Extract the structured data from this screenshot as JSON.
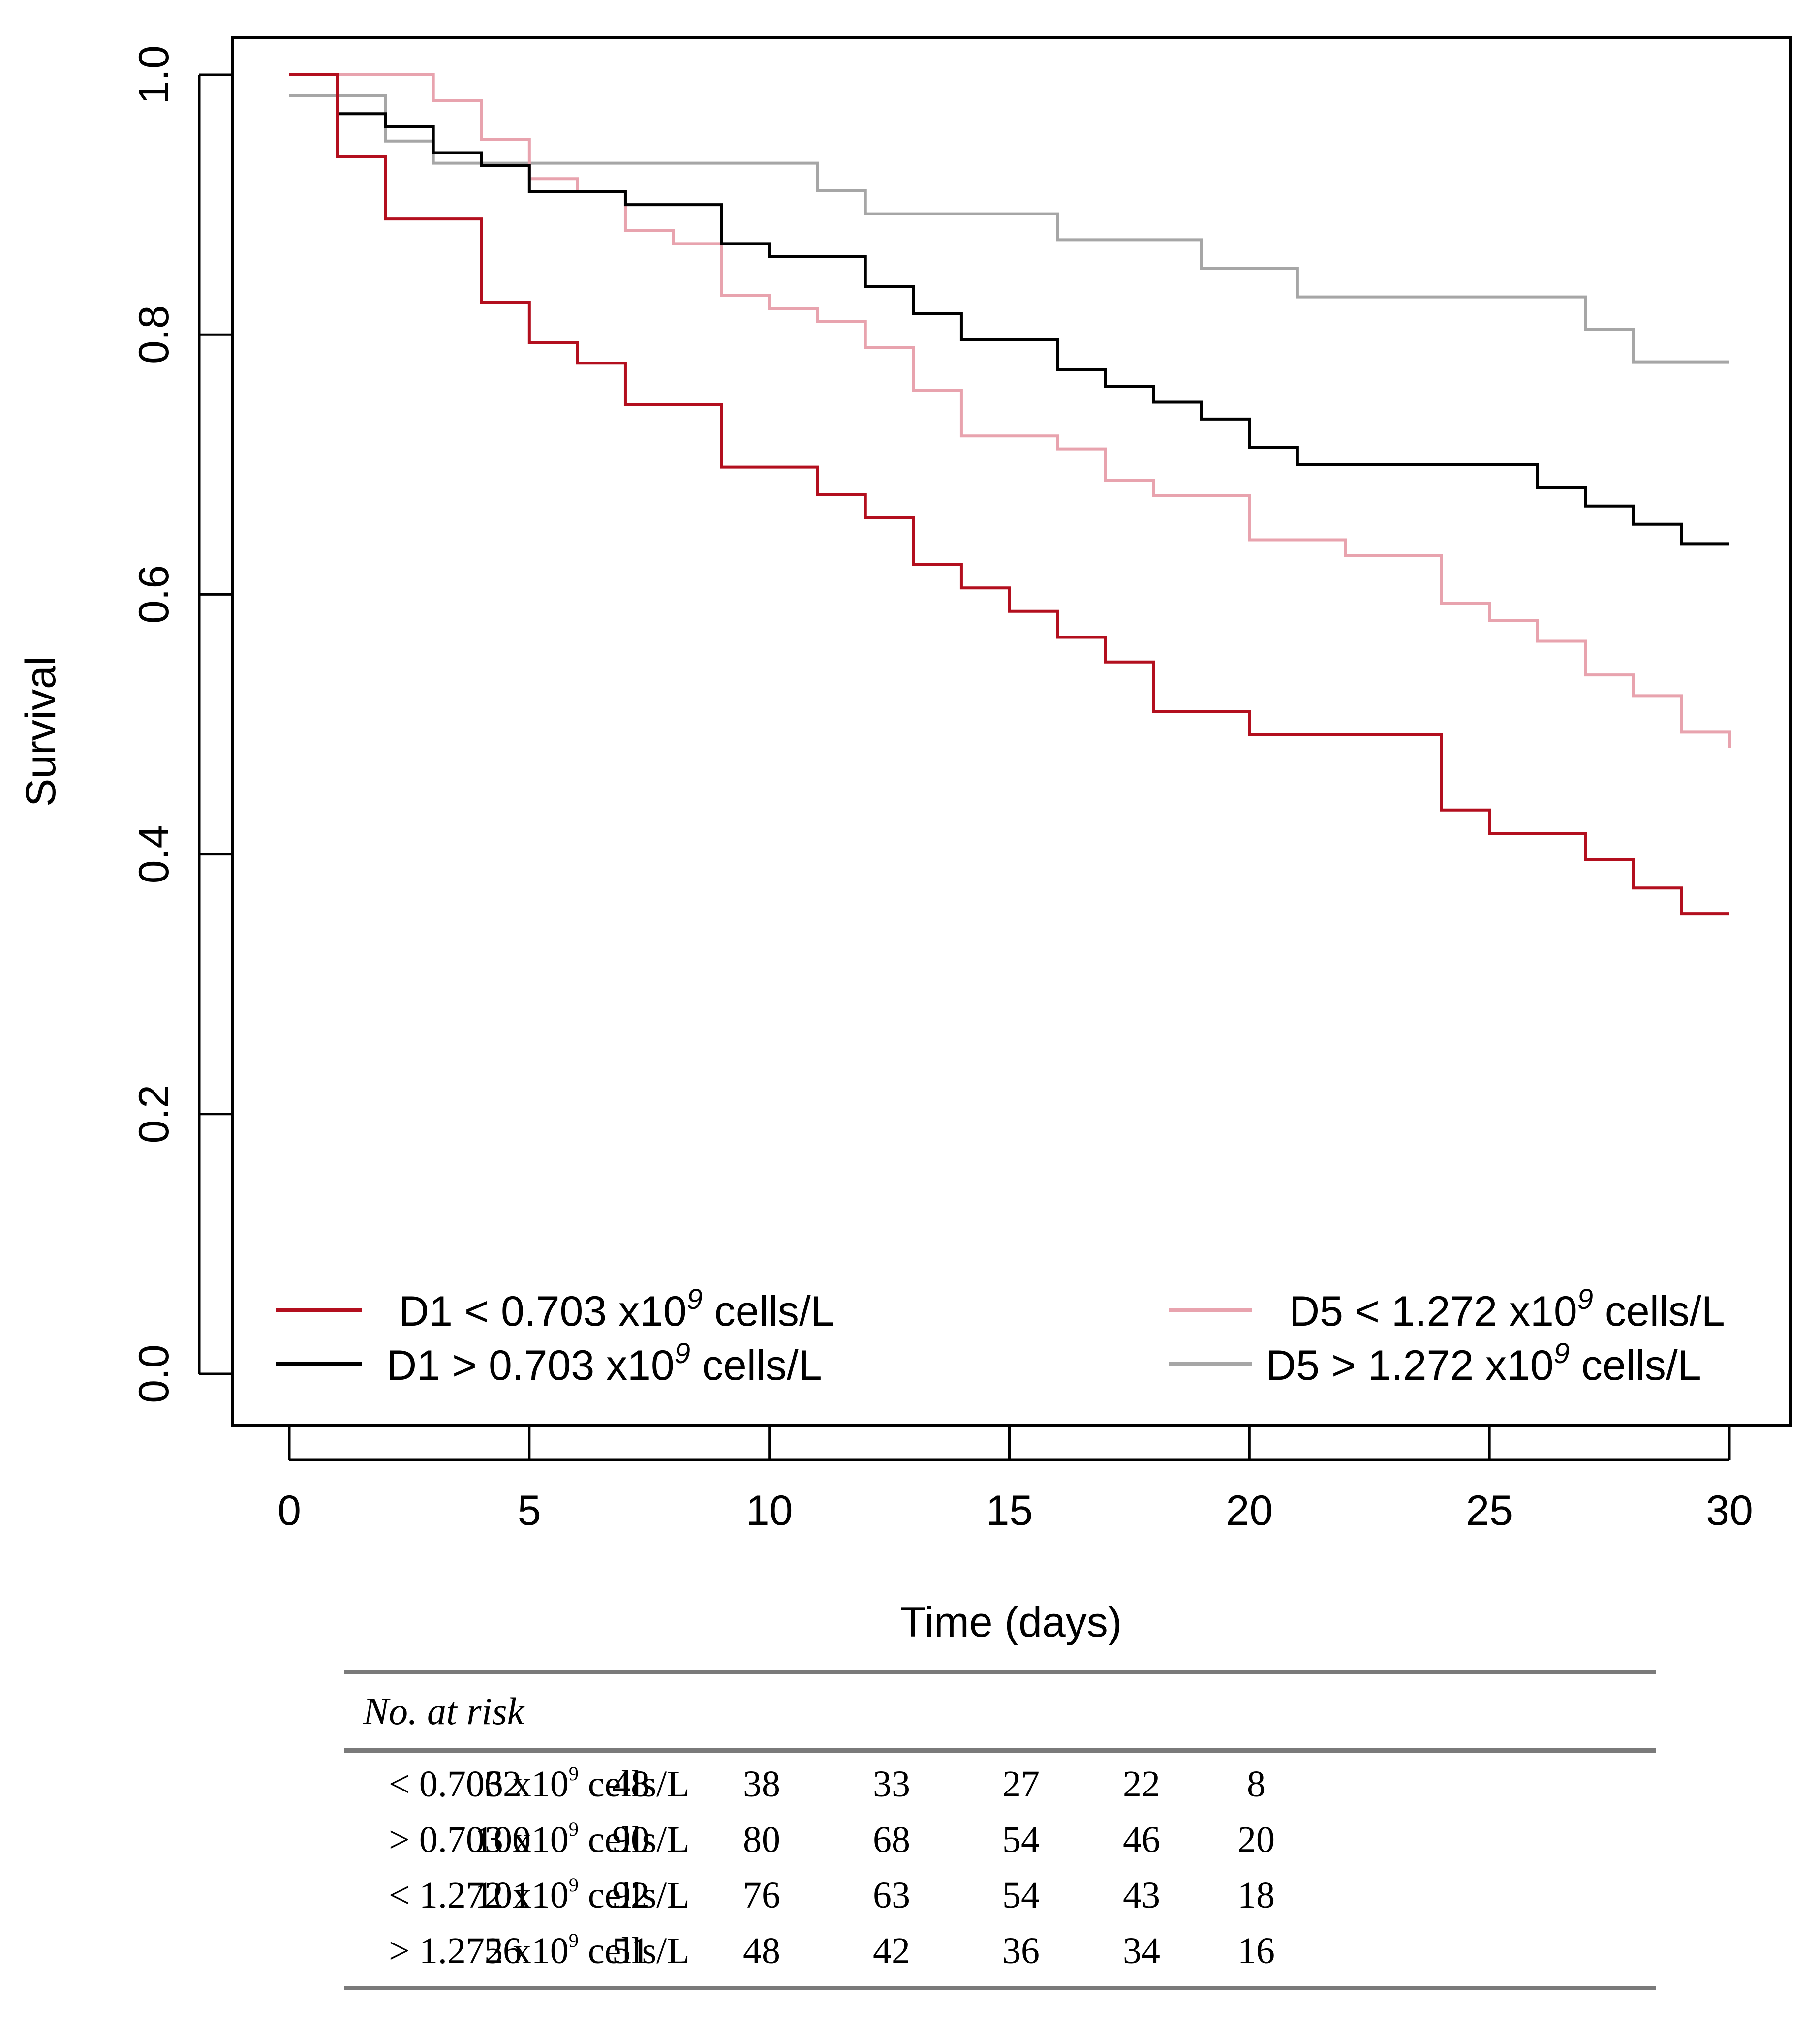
{
  "chart_data": {
    "type": "line",
    "subtype": "kaplan-meier-step",
    "xlabel": "Time (days)",
    "ylabel": "Survival",
    "xlim": [
      0,
      30
    ],
    "ylim": [
      0,
      1
    ],
    "xticks": [
      "0",
      "5",
      "10",
      "15",
      "20",
      "25",
      "30"
    ],
    "yticks": [
      "0.0",
      "0.2",
      "0.4",
      "0.6",
      "0.8",
      "1.0"
    ],
    "grid": false,
    "legend_position": "bottom",
    "series": [
      {
        "name": "D1 < 0.703 x10^9 cells/L",
        "legend_prefix": "D1 < 0.703 x10",
        "legend_exp": "9",
        "legend_suffix": " cells/L",
        "color": "#b30f1e",
        "x": [
          0,
          1,
          2,
          4,
          5,
          6,
          7,
          9,
          11,
          12,
          13,
          14,
          15,
          16,
          17,
          18,
          20,
          24,
          25,
          27,
          28,
          29,
          30
        ],
        "y": [
          1.0,
          0.937,
          0.889,
          0.825,
          0.794,
          0.778,
          0.746,
          0.698,
          0.677,
          0.659,
          0.623,
          0.605,
          0.587,
          0.567,
          0.548,
          0.51,
          0.492,
          0.434,
          0.416,
          0.396,
          0.374,
          0.354,
          0.354
        ]
      },
      {
        "name": "D1 > 0.703 x10^9 cells/L",
        "legend_prefix": "D1 > 0.703 x10",
        "legend_exp": "9",
        "legend_suffix": " cells/L",
        "color": "#000000",
        "x": [
          0,
          1,
          2,
          3,
          4,
          5,
          6,
          7,
          9,
          10,
          12,
          13,
          14,
          16,
          17,
          18,
          19,
          20,
          21,
          26,
          27,
          28,
          29,
          30
        ],
        "y": [
          1.0,
          0.97,
          0.96,
          0.94,
          0.93,
          0.91,
          0.91,
          0.9,
          0.87,
          0.86,
          0.837,
          0.816,
          0.796,
          0.773,
          0.76,
          0.748,
          0.735,
          0.713,
          0.7,
          0.682,
          0.668,
          0.654,
          0.639,
          0.639
        ]
      },
      {
        "name": "D5 < 1.272 x10^9 cells/L",
        "legend_prefix": "D5 < 1.272 x10",
        "legend_exp": "9",
        "legend_suffix": " cells/L",
        "color": "#e8a3ae",
        "x": [
          0,
          3,
          4,
          5,
          6,
          7,
          8,
          9,
          10,
          11,
          12,
          13,
          14,
          16,
          17,
          18,
          20,
          22,
          24,
          25,
          26,
          27,
          28,
          29,
          30
        ],
        "y": [
          1.0,
          0.98,
          0.95,
          0.92,
          0.91,
          0.88,
          0.87,
          0.83,
          0.82,
          0.81,
          0.79,
          0.757,
          0.722,
          0.712,
          0.688,
          0.676,
          0.642,
          0.63,
          0.593,
          0.58,
          0.564,
          0.538,
          0.522,
          0.494,
          0.482
        ]
      },
      {
        "name": "D5 > 1.272 x10^9 cells/L",
        "legend_prefix": "D5 > 1.272 x10",
        "legend_exp": "9",
        "legend_suffix": " cells/L",
        "color": "#a6a6a6",
        "x": [
          0,
          2,
          3,
          11,
          12,
          16,
          19,
          21,
          27,
          28,
          30
        ],
        "y": [
          0.984,
          0.949,
          0.932,
          0.911,
          0.893,
          0.873,
          0.851,
          0.829,
          0.804,
          0.779,
          0.779
        ]
      }
    ]
  },
  "risk_table": {
    "title": "No. at risk",
    "rows": [
      {
        "prefix": "< 0.703 x10",
        "exp": "9",
        "suffix": " cells/L",
        "values": [
          "62",
          "48",
          "38",
          "33",
          "27",
          "22",
          "8"
        ]
      },
      {
        "prefix": "> 0.703 x10",
        "exp": "9",
        "suffix": " cells/L",
        "values": [
          "100",
          "90",
          "80",
          "68",
          "54",
          "46",
          "20"
        ]
      },
      {
        "prefix": "< 1.272 x10",
        "exp": "9",
        "suffix": " cells/L",
        "values": [
          "101",
          "92",
          "76",
          "63",
          "54",
          "43",
          "18"
        ]
      },
      {
        "prefix": "> 1.272 x10",
        "exp": "9",
        "suffix": " cells/L",
        "values": [
          "56",
          "51",
          "48",
          "42",
          "36",
          "34",
          "16"
        ]
      }
    ]
  }
}
